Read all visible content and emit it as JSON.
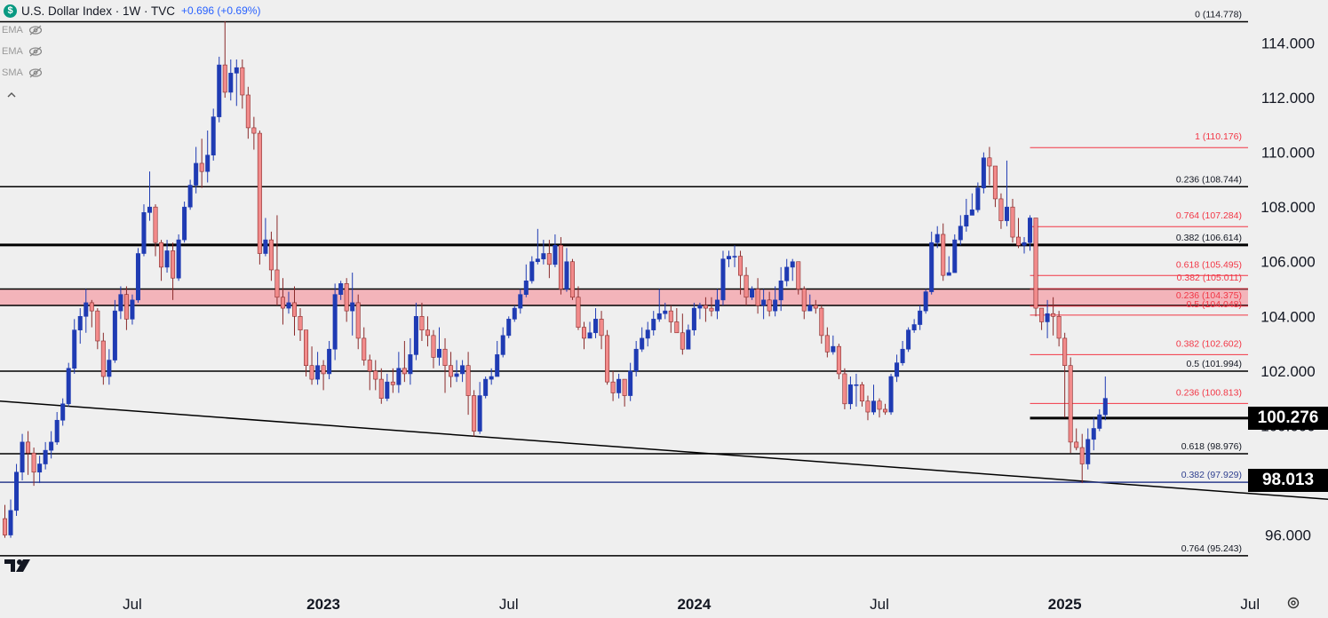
{
  "header": {
    "symbol_icon": "$",
    "title": "U.S. Dollar Index · 1W · TVC",
    "change": "+0.696 (+0.69%)"
  },
  "indicators": [
    {
      "label": "EMA",
      "icon": "eye-off-icon"
    },
    {
      "label": "EMA",
      "icon": "eye-off-icon"
    },
    {
      "label": "SMA",
      "icon": "eye-off-icon"
    }
  ],
  "colors": {
    "up": "#1f3bb3",
    "down": "#f28b8b",
    "down_border": "#8a2a2a",
    "fib_red": "#f23645",
    "zone_fill": "#f4a0a8",
    "text": "#131722"
  },
  "price_tags": [
    {
      "value": "100.276",
      "price": 100.276
    },
    {
      "value": "98.013",
      "price": 98.013
    }
  ],
  "chart_data": {
    "type": "candlestick",
    "timeframe": "1W",
    "instrument": "U.S. Dollar Index",
    "y_axis": {
      "ylim": [
        94.9,
        115.35
      ],
      "ticks": [
        "96.000",
        "98.000",
        "100.000",
        "102.000",
        "104.000",
        "106.000",
        "108.000",
        "110.000",
        "112.000",
        "114.000"
      ],
      "tick_values": [
        96,
        98,
        100,
        102,
        104,
        106,
        108,
        110,
        112,
        114
      ]
    },
    "x_axis": {
      "labels": [
        "Jul",
        "2023",
        "Jul",
        "2024",
        "Jul",
        "2025",
        "Jul"
      ],
      "label_bar_index": [
        22,
        55,
        87,
        119,
        151,
        183,
        215
      ],
      "bold": [
        false,
        true,
        false,
        true,
        false,
        true,
        false
      ]
    },
    "horizontal_levels": [
      {
        "price": 114.778,
        "label": "0 (114.778)",
        "weight": "normal",
        "extend": "full"
      },
      {
        "price": 108.744,
        "label": "0.236 (108.744)",
        "weight": "normal",
        "extend": "full"
      },
      {
        "price": 106.614,
        "label": "0.382 (106.614)",
        "weight": "thick",
        "extend": "full"
      },
      {
        "price": 101.994,
        "label": "0.5 (101.994)",
        "weight": "normal",
        "extend": "full"
      },
      {
        "price": 98.976,
        "label": "0.618 (98.976)",
        "weight": "normal",
        "extend": "full"
      },
      {
        "price": 95.243,
        "label": "0.764 (95.243)",
        "weight": "normal",
        "extend": "full"
      },
      {
        "price": 100.276,
        "label": "",
        "weight": "thick",
        "extend": "recent"
      },
      {
        "price": 97.929,
        "label": "0.382 (97.929)",
        "weight": "normal",
        "extend": "full",
        "color": "#2e3f8f"
      }
    ],
    "fib_levels_red": [
      {
        "price": 110.176,
        "label": "1 (110.176)"
      },
      {
        "price": 107.284,
        "label": "0.764 (107.284)"
      },
      {
        "price": 105.495,
        "label": "0.618 (105.495)"
      },
      {
        "price": 105.011,
        "label": "0.382 (105.011)"
      },
      {
        "price": 104.375,
        "label": "0.236 (104.375)"
      },
      {
        "price": 104.048,
        "label": "0.5 (104.048)"
      },
      {
        "price": 102.602,
        "label": "0.382 (102.602)"
      },
      {
        "price": 100.813,
        "label": "0.236 (100.813)"
      }
    ],
    "zone": {
      "from": 104.4,
      "to": 105.0
    },
    "trendline": {
      "from": {
        "bar": -1,
        "price": 100.9
      },
      "to": {
        "bar": 229,
        "price": 97.3
      }
    },
    "candles": [
      [
        96.6,
        96.0,
        97.1,
        95.9
      ],
      [
        96.0,
        96.9,
        97.3,
        95.9
      ],
      [
        96.9,
        98.3,
        98.6,
        96.7
      ],
      [
        98.3,
        99.4,
        99.7,
        98.0
      ],
      [
        99.4,
        99.0,
        99.8,
        98.2
      ],
      [
        99.0,
        98.3,
        99.2,
        97.8
      ],
      [
        98.3,
        98.6,
        98.9,
        97.9
      ],
      [
        98.6,
        99.1,
        99.4,
        98.4
      ],
      [
        99.1,
        99.4,
        99.8,
        98.8
      ],
      [
        99.4,
        100.2,
        100.5,
        99.3
      ],
      [
        100.2,
        100.8,
        101.0,
        100.0
      ],
      [
        100.8,
        102.1,
        102.3,
        100.7
      ],
      [
        102.1,
        103.5,
        103.9,
        101.9
      ],
      [
        103.5,
        104.0,
        104.3,
        103.0
      ],
      [
        104.0,
        104.5,
        105.0,
        103.4
      ],
      [
        104.5,
        104.2,
        104.6,
        103.6
      ],
      [
        104.2,
        103.1,
        104.3,
        102.8
      ],
      [
        103.1,
        101.8,
        103.4,
        101.5
      ],
      [
        101.8,
        102.4,
        102.8,
        101.5
      ],
      [
        102.4,
        104.2,
        104.6,
        102.3
      ],
      [
        104.2,
        104.8,
        105.1,
        103.9
      ],
      [
        104.8,
        103.9,
        105.1,
        103.5
      ],
      [
        103.9,
        104.6,
        104.8,
        103.7
      ],
      [
        104.6,
        106.3,
        106.5,
        104.5
      ],
      [
        106.3,
        107.8,
        108.1,
        106.2
      ],
      [
        107.8,
        108.0,
        109.3,
        107.5
      ],
      [
        108.0,
        106.7,
        108.1,
        106.2
      ],
      [
        106.7,
        105.8,
        106.8,
        105.3
      ],
      [
        105.8,
        106.4,
        106.8,
        105.6
      ],
      [
        106.4,
        105.4,
        106.7,
        104.6
      ],
      [
        105.4,
        106.8,
        107.0,
        105.3
      ],
      [
        106.8,
        108.0,
        108.2,
        106.7
      ],
      [
        108.0,
        108.8,
        109.0,
        107.9
      ],
      [
        108.8,
        109.6,
        110.2,
        108.5
      ],
      [
        109.6,
        109.3,
        110.5,
        108.7
      ],
      [
        109.3,
        109.9,
        110.8,
        108.9
      ],
      [
        109.9,
        111.3,
        111.6,
        109.7
      ],
      [
        111.3,
        113.2,
        113.5,
        111.1
      ],
      [
        113.2,
        112.2,
        114.8,
        112.0
      ],
      [
        112.2,
        112.9,
        113.4,
        111.9
      ],
      [
        112.9,
        113.1,
        113.4,
        111.7
      ],
      [
        113.1,
        112.1,
        113.4,
        111.6
      ],
      [
        112.1,
        110.9,
        112.4,
        110.5
      ],
      [
        110.9,
        110.7,
        111.3,
        110.1
      ],
      [
        110.7,
        106.3,
        110.8,
        105.9
      ],
      [
        106.3,
        106.8,
        107.6,
        106.2
      ],
      [
        106.8,
        105.7,
        107.1,
        105.3
      ],
      [
        105.7,
        104.7,
        107.7,
        104.4
      ],
      [
        104.7,
        104.3,
        105.4,
        103.7
      ],
      [
        104.3,
        104.5,
        104.9,
        104.1
      ],
      [
        104.5,
        104.0,
        105.1,
        103.3
      ],
      [
        104.0,
        103.5,
        104.3,
        103.1
      ],
      [
        103.5,
        102.2,
        103.5,
        101.8
      ],
      [
        102.2,
        101.7,
        102.9,
        101.5
      ],
      [
        101.7,
        102.2,
        102.7,
        101.5
      ],
      [
        102.2,
        101.9,
        102.4,
        101.3
      ],
      [
        101.9,
        102.8,
        103.1,
        101.7
      ],
      [
        102.8,
        104.8,
        105.2,
        102.4
      ],
      [
        104.8,
        105.2,
        105.3,
        104.6
      ],
      [
        105.2,
        104.2,
        105.4,
        103.8
      ],
      [
        104.2,
        104.5,
        105.6,
        103.3
      ],
      [
        104.5,
        103.2,
        104.8,
        102.8
      ],
      [
        103.2,
        102.4,
        103.6,
        102.2
      ],
      [
        102.4,
        102.0,
        102.6,
        101.3
      ],
      [
        102.0,
        101.7,
        102.4,
        101.3
      ],
      [
        101.7,
        101.0,
        102.1,
        100.8
      ],
      [
        101.0,
        101.6,
        101.9,
        100.9
      ],
      [
        101.6,
        101.5,
        102.1,
        101.2
      ],
      [
        101.5,
        102.1,
        102.7,
        101.2
      ],
      [
        102.1,
        101.9,
        103.1,
        101.6
      ],
      [
        101.9,
        102.6,
        103.2,
        101.5
      ],
      [
        102.6,
        104.0,
        104.5,
        102.4
      ],
      [
        104.0,
        103.5,
        104.5,
        103.1
      ],
      [
        103.5,
        103.3,
        104.0,
        102.9
      ],
      [
        103.3,
        102.5,
        103.5,
        102.1
      ],
      [
        102.5,
        102.8,
        103.6,
        102.2
      ],
      [
        102.8,
        102.2,
        103.2,
        101.2
      ],
      [
        102.2,
        101.8,
        102.7,
        101.4
      ],
      [
        101.8,
        101.9,
        102.4,
        101.6
      ],
      [
        101.9,
        102.2,
        102.4,
        101.6
      ],
      [
        102.2,
        101.1,
        102.7,
        100.4
      ],
      [
        101.1,
        99.8,
        101.3,
        99.6
      ],
      [
        99.8,
        101.1,
        101.6,
        99.7
      ],
      [
        101.1,
        101.7,
        101.8,
        101.0
      ],
      [
        101.7,
        101.8,
        102.1,
        101.5
      ],
      [
        101.8,
        102.6,
        103.1,
        101.9
      ],
      [
        102.6,
        103.3,
        103.6,
        102.5
      ],
      [
        103.3,
        103.9,
        104.0,
        103.2
      ],
      [
        103.9,
        104.3,
        104.4,
        103.8
      ],
      [
        104.3,
        104.8,
        105.0,
        104.1
      ],
      [
        104.8,
        105.3,
        105.9,
        104.7
      ],
      [
        105.3,
        106.0,
        106.2,
        105.2
      ],
      [
        106.0,
        106.1,
        107.2,
        105.9
      ],
      [
        106.1,
        106.3,
        106.8,
        105.9
      ],
      [
        106.3,
        105.9,
        106.8,
        105.4
      ],
      [
        105.9,
        106.6,
        107.0,
        105.8
      ],
      [
        106.6,
        105.0,
        106.9,
        104.8
      ],
      [
        105.0,
        106.0,
        106.5,
        104.9
      ],
      [
        106.0,
        104.7,
        106.1,
        104.6
      ],
      [
        104.7,
        103.6,
        105.1,
        103.5
      ],
      [
        103.6,
        103.2,
        103.8,
        102.8
      ],
      [
        103.2,
        103.4,
        103.8,
        103.2
      ],
      [
        103.4,
        103.9,
        104.3,
        103.2
      ],
      [
        103.9,
        103.3,
        104.2,
        102.8
      ],
      [
        103.3,
        101.6,
        103.5,
        101.5
      ],
      [
        101.6,
        101.2,
        102.0,
        100.9
      ],
      [
        101.2,
        101.7,
        101.9,
        101.0
      ],
      [
        101.7,
        101.1,
        101.7,
        100.7
      ],
      [
        101.1,
        102.0,
        102.3,
        100.9
      ],
      [
        102.0,
        102.8,
        103.1,
        101.8
      ],
      [
        102.8,
        103.2,
        103.6,
        102.7
      ],
      [
        103.2,
        103.5,
        103.8,
        102.9
      ],
      [
        103.5,
        103.9,
        104.2,
        103.3
      ],
      [
        103.9,
        104.1,
        105.0,
        103.8
      ],
      [
        104.1,
        104.2,
        104.5,
        103.9
      ],
      [
        104.2,
        103.8,
        104.4,
        103.4
      ],
      [
        103.8,
        103.4,
        104.3,
        103.4
      ],
      [
        103.4,
        102.8,
        104.1,
        102.6
      ],
      [
        102.8,
        103.5,
        103.7,
        102.8
      ],
      [
        103.5,
        104.3,
        104.5,
        103.3
      ],
      [
        104.3,
        104.4,
        104.5,
        103.9
      ],
      [
        104.4,
        104.3,
        104.7,
        103.8
      ],
      [
        104.3,
        104.2,
        104.7,
        104.0
      ],
      [
        104.2,
        104.6,
        105.0,
        103.9
      ],
      [
        104.6,
        106.1,
        106.4,
        104.4
      ],
      [
        106.1,
        106.2,
        106.4,
        105.8
      ],
      [
        106.2,
        106.2,
        106.6,
        105.8
      ],
      [
        106.2,
        105.5,
        106.4,
        104.8
      ],
      [
        105.5,
        104.7,
        105.8,
        104.4
      ],
      [
        104.7,
        105.0,
        105.1,
        104.6
      ],
      [
        105.0,
        104.4,
        105.4,
        104.1
      ],
      [
        104.4,
        104.6,
        105.0,
        103.9
      ],
      [
        104.6,
        104.2,
        104.9,
        104.0
      ],
      [
        104.2,
        104.6,
        105.1,
        104.0
      ],
      [
        104.6,
        105.3,
        105.8,
        104.2
      ],
      [
        105.3,
        105.8,
        106.1,
        105.1
      ],
      [
        105.8,
        106.0,
        106.1,
        105.3
      ],
      [
        106.0,
        105.0,
        106.0,
        104.8
      ],
      [
        105.0,
        104.2,
        105.1,
        103.9
      ],
      [
        104.2,
        104.4,
        104.8,
        104.2
      ],
      [
        104.4,
        104.3,
        104.6,
        104.1
      ],
      [
        104.3,
        103.3,
        104.4,
        103.0
      ],
      [
        103.3,
        102.7,
        103.6,
        102.5
      ],
      [
        102.7,
        102.9,
        103.3,
        102.6
      ],
      [
        102.9,
        101.9,
        103.0,
        101.7
      ],
      [
        101.9,
        100.8,
        102.1,
        100.6
      ],
      [
        100.8,
        101.5,
        101.8,
        100.6
      ],
      [
        101.5,
        101.5,
        101.9,
        100.7
      ],
      [
        101.5,
        100.9,
        101.6,
        100.7
      ],
      [
        100.9,
        100.5,
        101.1,
        100.2
      ],
      [
        100.5,
        100.9,
        101.5,
        100.4
      ],
      [
        100.9,
        100.6,
        101.0,
        100.3
      ],
      [
        100.6,
        100.5,
        100.8,
        100.4
      ],
      [
        100.5,
        101.8,
        101.9,
        100.4
      ],
      [
        101.8,
        102.3,
        102.6,
        101.6
      ],
      [
        102.3,
        102.8,
        103.1,
        102.2
      ],
      [
        102.8,
        103.5,
        103.6,
        102.7
      ],
      [
        103.5,
        103.7,
        103.9,
        103.4
      ],
      [
        103.7,
        104.2,
        104.4,
        103.5
      ],
      [
        104.2,
        104.9,
        105.0,
        104.1
      ],
      [
        104.9,
        106.7,
        107.1,
        104.8
      ],
      [
        106.7,
        107.0,
        107.3,
        106.5
      ],
      [
        107.0,
        105.5,
        107.4,
        105.3
      ],
      [
        105.5,
        105.6,
        106.2,
        105.5
      ],
      [
        105.6,
        106.8,
        107.0,
        105.6
      ],
      [
        106.8,
        107.3,
        107.7,
        106.6
      ],
      [
        107.3,
        107.7,
        108.3,
        107.1
      ],
      [
        107.7,
        107.9,
        108.5,
        107.7
      ],
      [
        107.9,
        108.7,
        108.9,
        107.8
      ],
      [
        108.7,
        109.8,
        110.0,
        108.5
      ],
      [
        109.8,
        109.5,
        110.2,
        108.8
      ],
      [
        109.5,
        108.3,
        109.5,
        108.0
      ],
      [
        108.3,
        107.5,
        108.5,
        107.2
      ],
      [
        107.5,
        108.0,
        109.7,
        107.3
      ],
      [
        108.0,
        106.9,
        108.3,
        106.7
      ],
      [
        106.9,
        106.6,
        107.6,
        106.5
      ],
      [
        106.6,
        106.7,
        106.9,
        106.3
      ],
      [
        106.7,
        107.6,
        107.7,
        106.4
      ],
      [
        107.6,
        104.3,
        107.6,
        104.0
      ],
      [
        104.3,
        103.8,
        104.3,
        103.5
      ],
      [
        103.8,
        104.1,
        104.6,
        103.2
      ],
      [
        104.1,
        104.0,
        104.7,
        103.3
      ],
      [
        104.0,
        103.2,
        104.2,
        102.9
      ],
      [
        103.2,
        102.2,
        103.4,
        100.3
      ],
      [
        102.2,
        99.4,
        102.5,
        99.0
      ],
      [
        99.4,
        99.2,
        99.9,
        99.1
      ],
      [
        99.2,
        98.6,
        99.7,
        97.9
      ],
      [
        98.6,
        99.5,
        99.9,
        98.4
      ],
      [
        99.5,
        99.9,
        100.3,
        99.1
      ],
      [
        99.9,
        100.4,
        100.6,
        99.8
      ],
      [
        100.4,
        101.0,
        101.8,
        100.2
      ]
    ]
  }
}
